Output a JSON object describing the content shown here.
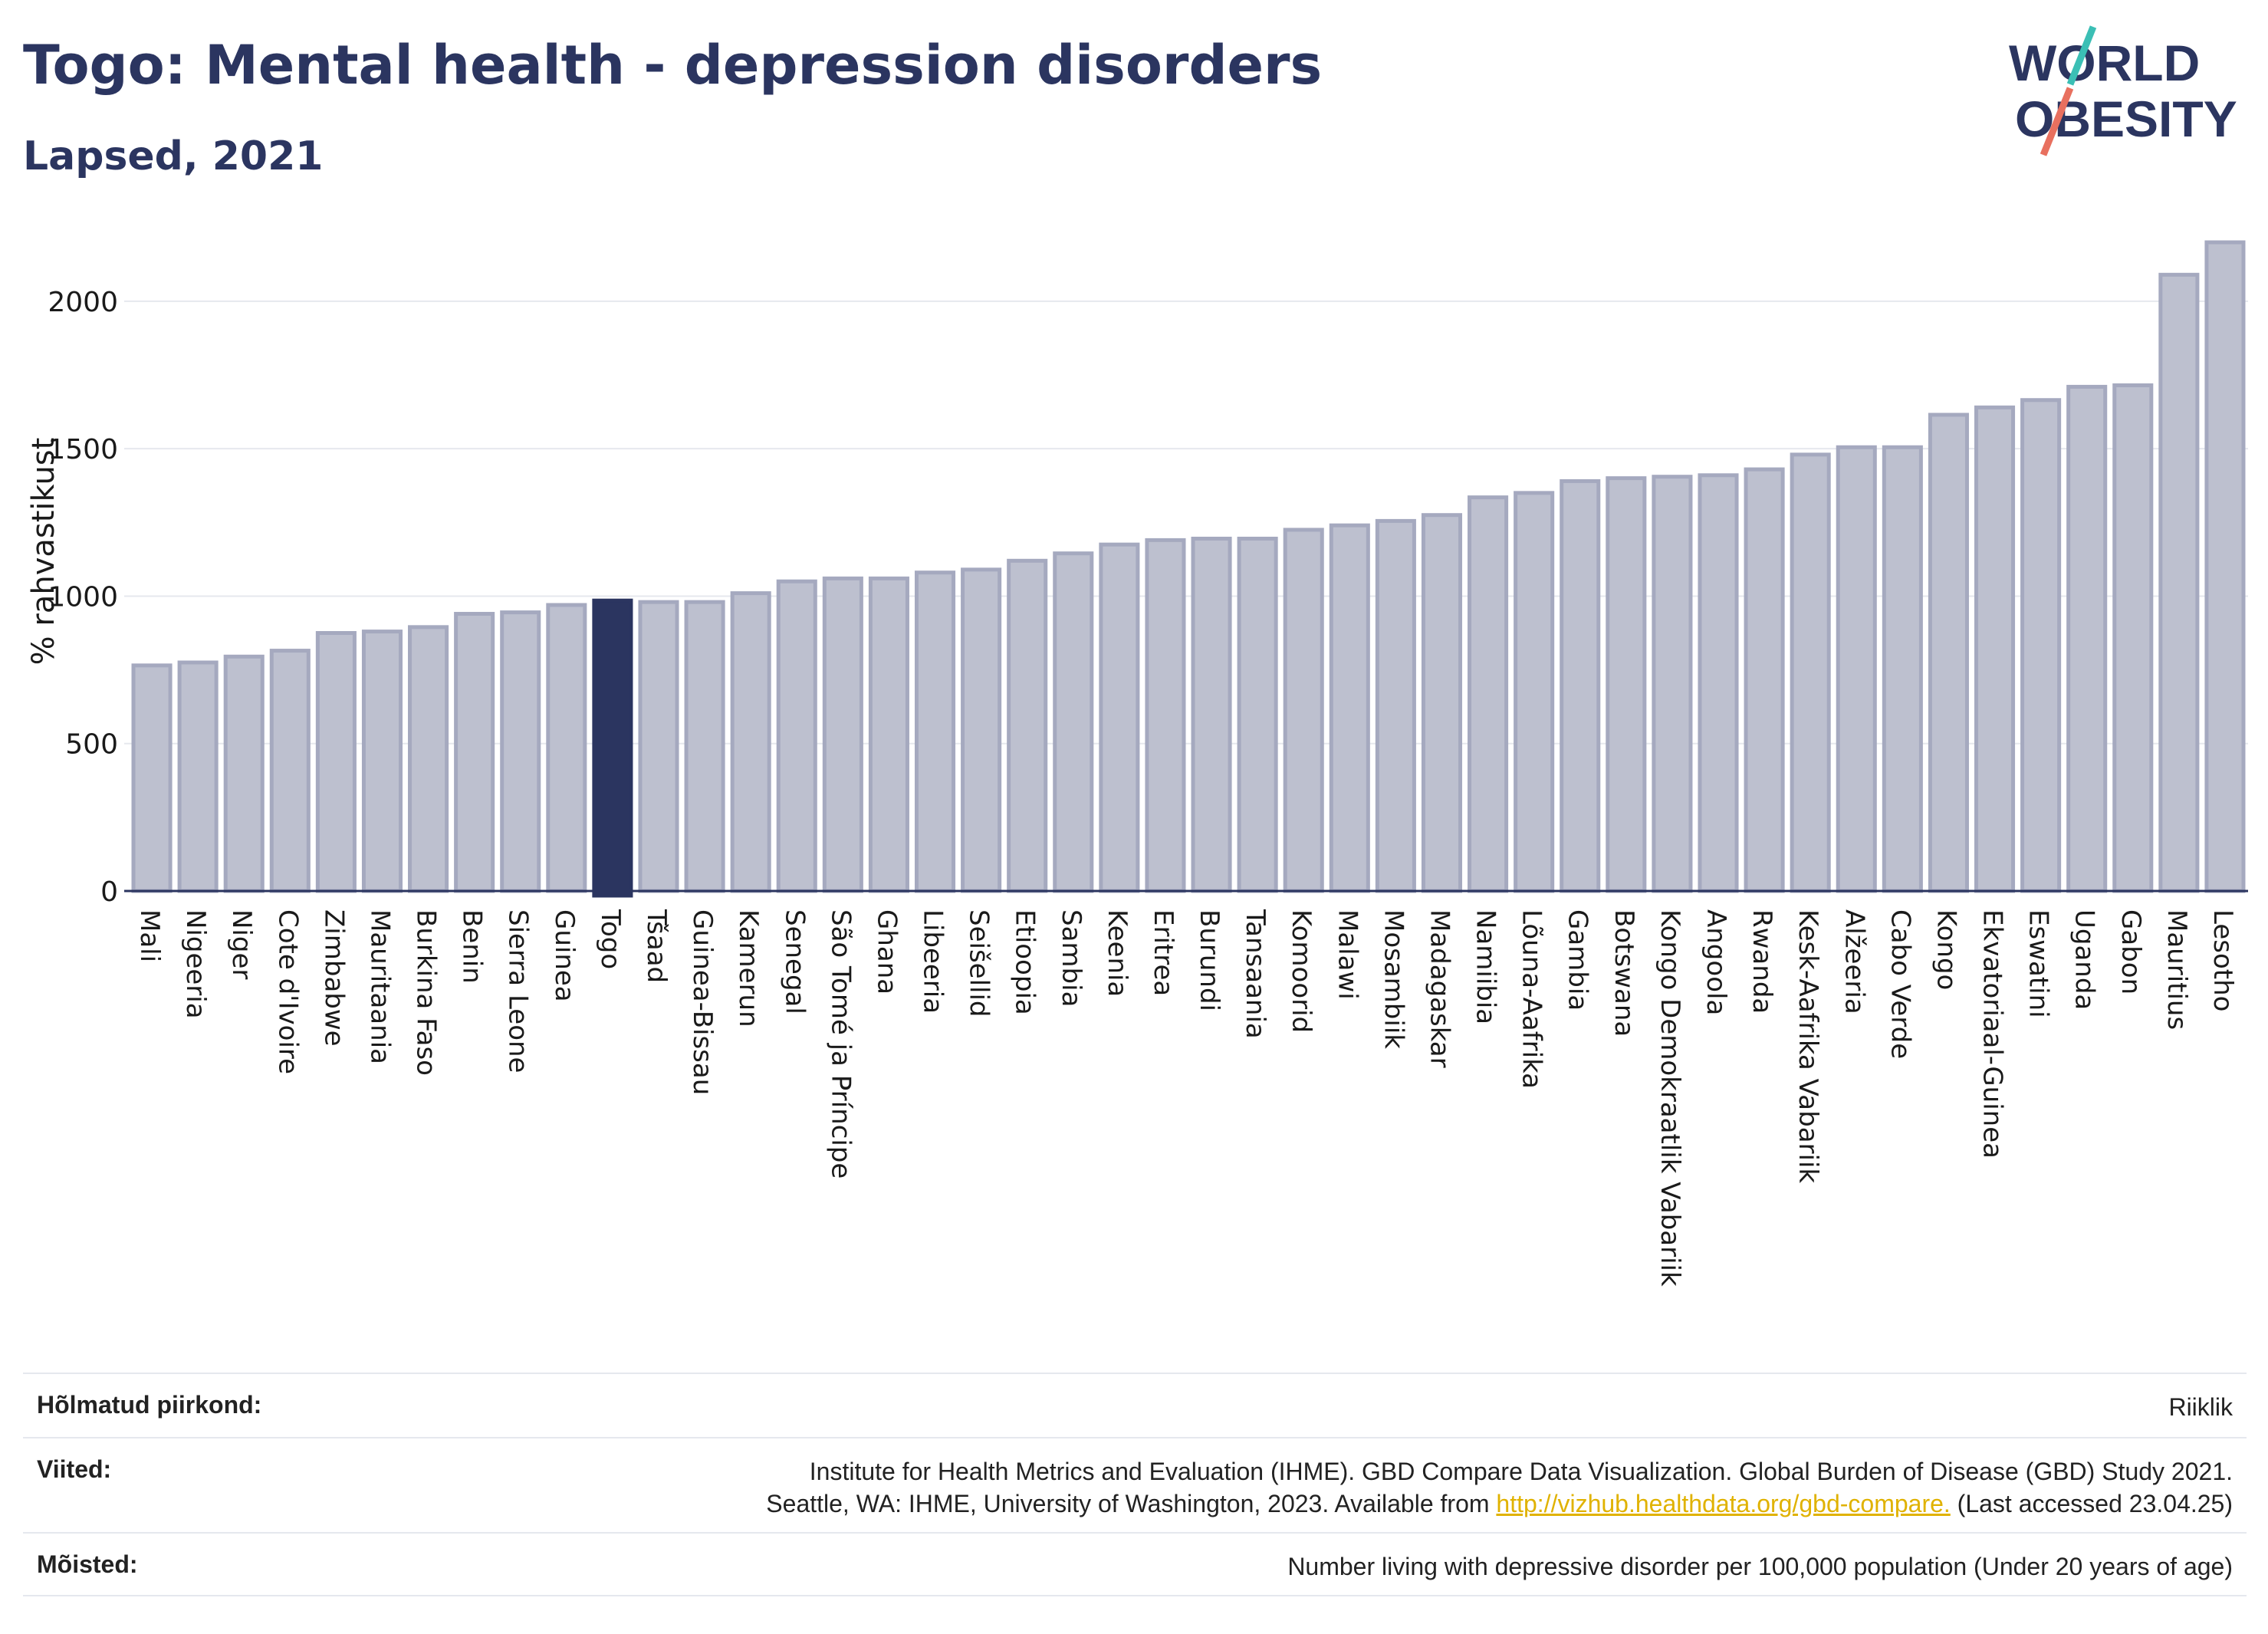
{
  "header": {
    "title": "Togo: Mental health - depression disorders",
    "subtitle": "Lapsed, 2021"
  },
  "logo": {
    "line1": "WORLD",
    "line2": "OBESITY"
  },
  "colors": {
    "bar": "#bdc0cf",
    "bar_border": "#a5a9bf",
    "highlight": "#2b3560",
    "grid": "#e6e8ee",
    "text": "#2b3560"
  },
  "chart_data": {
    "type": "bar",
    "ylabel": "% rahvastikust",
    "ylim": [
      0,
      2200
    ],
    "yticks": [
      0,
      500,
      1000,
      1500,
      2000
    ],
    "grid": true,
    "highlight": "Togo",
    "categories": [
      "Mali",
      "Nigeeria",
      "Niger",
      "Cote d'Ivoire",
      "Zimbabwe",
      "Mauritaania",
      "Burkina Faso",
      "Benin",
      "Sierra Leone",
      "Guinea",
      "Togo",
      "Tšaad",
      "Guinea-Bissau",
      "Kamerun",
      "Senegal",
      "São Tomé ja Príncipe",
      "Ghana",
      "Libeeria",
      "Seišellid",
      "Etioopia",
      "Sambia",
      "Keenia",
      "Eritrea",
      "Burundi",
      "Tansaania",
      "Komoorid",
      "Malawi",
      "Mosambiik",
      "Madagaskar",
      "Namiibia",
      "Lõuna-Aafrika",
      "Gambia",
      "Botswana",
      "Kongo Demokraatlik Vabariik",
      "Angoola",
      "Rwanda",
      "Kesk-Aafrika Vabariik",
      "Alžeeria",
      "Cabo Verde",
      "Kongo",
      "Ekvatoriaal-Guinea",
      "Eswatini",
      "Uganda",
      "Gabon",
      "Mauritius",
      "Lesotho"
    ],
    "values": [
      765,
      775,
      795,
      815,
      875,
      880,
      895,
      940,
      945,
      970,
      985,
      980,
      980,
      1010,
      1050,
      1060,
      1060,
      1080,
      1090,
      1120,
      1145,
      1175,
      1190,
      1195,
      1195,
      1225,
      1240,
      1255,
      1275,
      1335,
      1350,
      1390,
      1400,
      1405,
      1410,
      1430,
      1480,
      1505,
      1505,
      1615,
      1640,
      1665,
      1710,
      1715,
      2090,
      2200
    ]
  },
  "footer": {
    "rows": [
      {
        "label": "Hõlmatud piirkond:",
        "value": "Riiklik"
      },
      {
        "label": "Viited:",
        "line1": "Institute for Health Metrics and Evaluation (IHME). GBD Compare Data Visualization. Global Burden of Disease (GBD) Study 2021.",
        "line2_before": "Seattle, WA: IHME, University of Washington, 2023. Available from ",
        "link": "http://vizhub.healthdata.org/gbd-compare.",
        "line2_after": " (Last accessed 23.04.25)"
      },
      {
        "label": "Mõisted:",
        "value": "Number living with depressive disorder per 100,000 population (Under 20 years of age)"
      }
    ]
  }
}
